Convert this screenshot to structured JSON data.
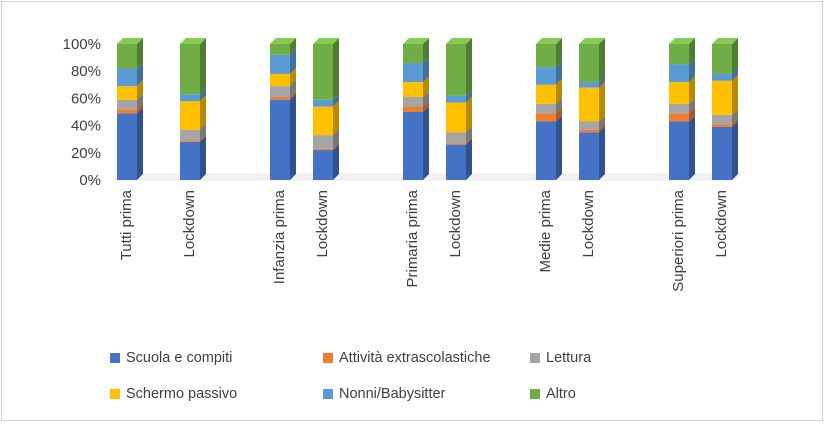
{
  "chart_data": {
    "type": "bar",
    "stacked": "percent",
    "style": "3d-column",
    "title": "",
    "xlabel": "",
    "ylabel": "",
    "ylim": [
      0,
      100
    ],
    "yticks": [
      "0%",
      "20%",
      "40%",
      "60%",
      "80%",
      "100%"
    ],
    "grid": false,
    "legend_position": "bottom",
    "categories": [
      "Tutti prima",
      "Lockdown",
      "Infanzia prima",
      "Lockdown",
      "Primaria prima",
      "Lockdown",
      "Medie prima",
      "Lockdown",
      "Superiori prima",
      "Lockdown"
    ],
    "series": [
      {
        "name": "Scuola e compiti",
        "color": "#4472C4",
        "values": [
          49,
          28,
          59,
          22,
          50,
          26,
          43,
          35,
          43,
          39
        ]
      },
      {
        "name": "Attività extrascolastiche",
        "color": "#ED7D31",
        "values": [
          3,
          1,
          2,
          1,
          4,
          1,
          6,
          2,
          6,
          2
        ]
      },
      {
        "name": "Lettura",
        "color": "#A5A5A5",
        "values": [
          7,
          8,
          8,
          10,
          7,
          8,
          7,
          6,
          7,
          7
        ]
      },
      {
        "name": "Schermo passivo",
        "color": "#FFC000",
        "values": [
          10,
          21,
          9,
          21,
          11,
          22,
          14,
          25,
          16,
          25
        ]
      },
      {
        "name": "Nonni/Babysitter",
        "color": "#5B9BD5",
        "values": [
          13,
          5,
          14,
          5,
          14,
          5,
          13,
          4,
          13,
          5
        ]
      },
      {
        "name": "Altro",
        "color": "#70AD47",
        "values": [
          18,
          37,
          8,
          41,
          14,
          38,
          17,
          28,
          15,
          22
        ]
      }
    ]
  }
}
